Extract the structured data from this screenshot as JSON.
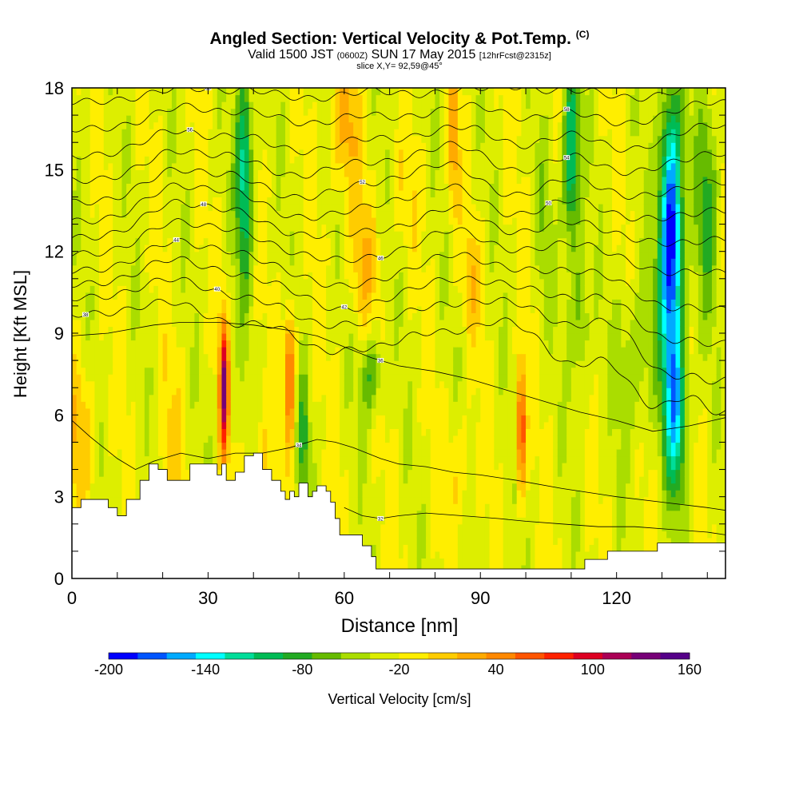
{
  "title": {
    "main": "Angled Section: Vertical Velocity & Pot.Temp.",
    "unit_tag": "(C)",
    "valid_prefix": "Valid 1500 JST",
    "valid_utc": "(0600Z)",
    "valid_date": "SUN 17 May 2015",
    "forecast": "[12hrFcst@2315z]",
    "slice": "slice X,Y= 92,59@45°"
  },
  "colors": {
    "scale": [
      "#0000ff",
      "#0055ff",
      "#00aaff",
      "#00ffff",
      "#00dd99",
      "#00bb55",
      "#22aa22",
      "#66bb00",
      "#aadd00",
      "#ddee00",
      "#ffee00",
      "#ffcc00",
      "#ffaa00",
      "#ff8800",
      "#ff5500",
      "#ff2200",
      "#dd0022",
      "#aa0055",
      "#770077",
      "#550088"
    ],
    "background": "#ffffff",
    "contour": "#000000",
    "terrain": "#ffffff"
  },
  "chart_data": {
    "type": "heatmap",
    "xlabel": "Distance [nm]",
    "ylabel": "Height [Kft MSL]",
    "xlim": [
      0,
      144
    ],
    "ylim": [
      0,
      18
    ],
    "xticks": [
      0,
      30,
      60,
      90,
      120
    ],
    "yticks": [
      0,
      3,
      6,
      9,
      12,
      15,
      18
    ],
    "colorbar": {
      "label": "Vertical Velocity [cm/s]",
      "min": -200,
      "max": 160,
      "step": 20,
      "tick_labels": [
        "-200",
        "-140",
        "-80",
        "-20",
        "40",
        "100",
        "160"
      ]
    },
    "background_value": -5,
    "velocity_features": [
      {
        "x": 2,
        "z": 5.5,
        "w": 45,
        "sx": 3,
        "sz": 2.5
      },
      {
        "x": 33.5,
        "z": 7.0,
        "w": 160,
        "sx": 1.0,
        "sz": 2.5
      },
      {
        "x": 48,
        "z": 7.5,
        "w": 95,
        "sx": 1.2,
        "sz": 2.5
      },
      {
        "x": 99,
        "z": 5.5,
        "w": 120,
        "sx": 1.0,
        "sz": 2.3
      },
      {
        "x": 42,
        "z": 4.0,
        "w": 35,
        "sx": 2,
        "sz": 2
      },
      {
        "x": 85,
        "z": 4.0,
        "w": 30,
        "sx": 3,
        "sz": 2
      },
      {
        "x": 22,
        "z": 5.0,
        "w": 25,
        "sx": 3,
        "sz": 3
      },
      {
        "x": 60,
        "z": 16.5,
        "w": 50,
        "sx": 3,
        "sz": 2.5
      },
      {
        "x": 64,
        "z": 11.5,
        "w": 40,
        "sx": 3,
        "sz": 2.5
      },
      {
        "x": 84,
        "z": 16.0,
        "w": 55,
        "sx": 1.3,
        "sz": 3
      },
      {
        "x": 88,
        "z": 11.0,
        "w": 35,
        "sx": 2,
        "sz": 2
      },
      {
        "x": 73,
        "z": 14.0,
        "w": 20,
        "sx": 3,
        "sz": 2
      },
      {
        "x": 38,
        "z": 15.0,
        "w": -110,
        "sx": 1.8,
        "sz": 4
      },
      {
        "x": 66,
        "z": 7.5,
        "w": -60,
        "sx": 2.5,
        "sz": 1.5
      },
      {
        "x": 51,
        "z": 5.0,
        "w": -55,
        "sx": 1.3,
        "sz": 2.5
      },
      {
        "x": 110,
        "z": 15.5,
        "w": -110,
        "sx": 1.8,
        "sz": 3.5
      },
      {
        "x": 112,
        "z": 9.5,
        "w": -50,
        "sx": 2,
        "sz": 2.5
      },
      {
        "x": 132,
        "z": 12.5,
        "w": -200,
        "sx": 2.5,
        "sz": 5
      },
      {
        "x": 133,
        "z": 6.0,
        "w": -110,
        "sx": 2.5,
        "sz": 3
      },
      {
        "x": 124,
        "z": 8.0,
        "w": -40,
        "sx": 4,
        "sz": 3
      },
      {
        "x": 140,
        "z": 14.0,
        "w": -60,
        "sx": 2.5,
        "sz": 4
      },
      {
        "x": 104,
        "z": 13.0,
        "w": -25,
        "sx": 2,
        "sz": 3
      }
    ],
    "terrain_profile": [
      [
        0,
        2.6
      ],
      [
        2,
        2.9
      ],
      [
        8,
        2.6
      ],
      [
        10,
        2.3
      ],
      [
        12,
        2.9
      ],
      [
        15,
        3.6
      ],
      [
        17,
        4.2
      ],
      [
        19,
        4.0
      ],
      [
        21,
        3.6
      ],
      [
        24,
        3.6
      ],
      [
        26,
        4.2
      ],
      [
        29,
        4.2
      ],
      [
        32,
        3.8
      ],
      [
        33,
        4.2
      ],
      [
        34,
        3.6
      ],
      [
        36,
        3.9
      ],
      [
        38,
        4.5
      ],
      [
        40,
        4.6
      ],
      [
        42,
        4.0
      ],
      [
        44,
        3.6
      ],
      [
        46,
        3.2
      ],
      [
        47,
        2.9
      ],
      [
        48,
        3.2
      ],
      [
        49,
        3.0
      ],
      [
        50,
        3.5
      ],
      [
        52,
        3.0
      ],
      [
        53,
        3.2
      ],
      [
        54,
        3.4
      ],
      [
        56,
        3.2
      ],
      [
        57,
        2.8
      ],
      [
        58,
        2.2
      ],
      [
        59,
        1.6
      ],
      [
        62,
        1.6
      ],
      [
        64,
        1.2
      ],
      [
        66,
        0.8
      ],
      [
        67,
        0.35
      ],
      [
        108,
        0.35
      ],
      [
        113,
        0.7
      ],
      [
        118,
        1.0
      ],
      [
        121,
        1.0
      ],
      [
        127,
        1.0
      ],
      [
        129,
        1.3
      ],
      [
        138,
        1.3
      ],
      [
        140,
        1.3
      ],
      [
        144,
        1.3
      ]
    ],
    "isotherms": [
      {
        "base": 9.7,
        "label": "38",
        "lx": 3,
        "osc": [
          [
            22,
            0.5
          ],
          [
            35,
            -0.4
          ],
          [
            55,
            -1.2
          ],
          [
            68,
            -1.0
          ],
          [
            84,
            -0.6
          ],
          [
            110,
            -1.8
          ],
          [
            128,
            -3.2
          ],
          [
            144,
            -3.5
          ]
        ]
      },
      {
        "base": 10.3,
        "label": "40",
        "lx": 32,
        "osc": [
          [
            22,
            0.7
          ],
          [
            36,
            0.0
          ],
          [
            55,
            -0.9
          ],
          [
            68,
            -0.7
          ],
          [
            84,
            -0.2
          ],
          [
            110,
            -1.0
          ],
          [
            130,
            -2.5
          ],
          [
            144,
            -2.8
          ]
        ]
      },
      {
        "base": 10.8,
        "label": "42",
        "lx": 60,
        "osc": [
          [
            22,
            0.9
          ],
          [
            36,
            0.3
          ],
          [
            58,
            -0.8
          ],
          [
            68,
            -0.4
          ],
          [
            84,
            0.2
          ],
          [
            110,
            -0.5
          ],
          [
            130,
            -1.8
          ],
          [
            144,
            -2.0
          ]
        ]
      },
      {
        "base": 11.3,
        "label": "44",
        "lx": 23,
        "osc": [
          [
            22,
            1.0
          ],
          [
            36,
            0.6
          ],
          [
            58,
            -0.5
          ],
          [
            68,
            -0.2
          ],
          [
            84,
            0.6
          ],
          [
            110,
            0.0
          ],
          [
            130,
            -1.2
          ],
          [
            144,
            -1.3
          ]
        ]
      },
      {
        "base": 11.9,
        "label": "46",
        "lx": 68,
        "osc": [
          [
            22,
            1.1
          ],
          [
            36,
            0.8
          ],
          [
            60,
            -0.2
          ],
          [
            68,
            0.0
          ],
          [
            84,
            0.9
          ],
          [
            110,
            0.4
          ],
          [
            130,
            -0.6
          ],
          [
            144,
            -0.6
          ]
        ]
      },
      {
        "base": 12.5,
        "label": "48",
        "lx": 29,
        "osc": [
          [
            22,
            1.2
          ],
          [
            36,
            0.9
          ],
          [
            60,
            0.1
          ],
          [
            70,
            0.2
          ],
          [
            84,
            1.1
          ],
          [
            110,
            0.6
          ],
          [
            132,
            -0.2
          ],
          [
            144,
            0.0
          ]
        ]
      },
      {
        "base": 13.1,
        "label": "50",
        "lx": 105,
        "osc": [
          [
            22,
            1.2
          ],
          [
            36,
            1.0
          ],
          [
            62,
            0.3
          ],
          [
            72,
            0.5
          ],
          [
            84,
            1.2
          ],
          [
            110,
            0.8
          ],
          [
            132,
            0.1
          ],
          [
            144,
            0.4
          ]
        ]
      },
      {
        "base": 13.8,
        "label": "52",
        "lx": 64,
        "osc": [
          [
            22,
            1.1
          ],
          [
            36,
            0.9
          ],
          [
            62,
            0.5
          ],
          [
            74,
            0.6
          ],
          [
            84,
            1.2
          ],
          [
            110,
            0.9
          ],
          [
            132,
            0.3
          ],
          [
            144,
            0.7
          ]
        ]
      },
      {
        "base": 14.6,
        "label": "54",
        "lx": 109,
        "osc": [
          [
            22,
            1.0
          ],
          [
            36,
            0.8
          ],
          [
            62,
            0.6
          ],
          [
            76,
            0.6
          ],
          [
            86,
            1.1
          ],
          [
            110,
            0.9
          ],
          [
            132,
            0.5
          ],
          [
            144,
            0.9
          ]
        ]
      },
      {
        "base": 15.5,
        "label": "56",
        "lx": 26,
        "osc": [
          [
            22,
            0.9
          ],
          [
            38,
            0.7
          ],
          [
            64,
            0.6
          ],
          [
            78,
            0.5
          ],
          [
            88,
            0.9
          ],
          [
            110,
            0.8
          ],
          [
            134,
            0.6
          ],
          [
            144,
            0.9
          ]
        ]
      },
      {
        "base": 16.5,
        "label": "58",
        "lx": 109,
        "osc": [
          [
            24,
            0.8
          ],
          [
            40,
            0.6
          ],
          [
            64,
            0.5
          ],
          [
            80,
            0.4
          ],
          [
            90,
            0.7
          ],
          [
            110,
            0.6
          ],
          [
            134,
            0.5
          ],
          [
            144,
            0.8
          ]
        ]
      },
      {
        "base": 17.5,
        "label": "60",
        "lx": 30,
        "osc": [
          [
            24,
            0.5
          ],
          [
            40,
            0.4
          ],
          [
            66,
            0.4
          ],
          [
            84,
            0.3
          ],
          [
            96,
            0.5
          ],
          [
            112,
            0.4
          ],
          [
            136,
            0.3
          ],
          [
            144,
            0.6
          ]
        ]
      }
    ],
    "lower_isotherms": [
      {
        "label": "36",
        "lx": 68,
        "points": [
          [
            0,
            8.9
          ],
          [
            8,
            9.0
          ],
          [
            18,
            9.3
          ],
          [
            24,
            9.4
          ],
          [
            32,
            9.4
          ],
          [
            40,
            9.3
          ],
          [
            48,
            9.1
          ],
          [
            54,
            8.9
          ],
          [
            60,
            8.5
          ],
          [
            66,
            8.1
          ],
          [
            72,
            7.8
          ],
          [
            80,
            7.6
          ],
          [
            88,
            7.3
          ],
          [
            96,
            6.9
          ],
          [
            104,
            6.5
          ],
          [
            112,
            6.1
          ],
          [
            120,
            5.8
          ],
          [
            128,
            5.4
          ],
          [
            136,
            5.6
          ],
          [
            144,
            5.9
          ]
        ]
      },
      {
        "label": "34",
        "lx": 50,
        "points": [
          [
            0,
            5.8
          ],
          [
            4,
            5.2
          ],
          [
            10,
            4.4
          ],
          [
            14,
            4.0
          ],
          [
            18,
            4.3
          ],
          [
            24,
            4.6
          ],
          [
            30,
            4.4
          ],
          [
            36,
            4.6
          ],
          [
            42,
            4.6
          ],
          [
            48,
            4.8
          ],
          [
            54,
            5.1
          ],
          [
            58,
            5.0
          ],
          [
            62,
            4.8
          ],
          [
            68,
            4.4
          ],
          [
            72,
            4.2
          ],
          [
            78,
            4.1
          ],
          [
            84,
            3.9
          ],
          [
            90,
            3.8
          ],
          [
            98,
            3.6
          ],
          [
            108,
            3.3
          ],
          [
            120,
            3.0
          ],
          [
            130,
            2.8
          ],
          [
            140,
            2.6
          ],
          [
            144,
            2.5
          ]
        ]
      },
      {
        "label": "32",
        "lx": 68,
        "points": [
          [
            60,
            2.6
          ],
          [
            64,
            2.3
          ],
          [
            68,
            2.2
          ],
          [
            72,
            2.3
          ],
          [
            78,
            2.4
          ],
          [
            86,
            2.3
          ],
          [
            94,
            2.2
          ],
          [
            100,
            2.1
          ],
          [
            108,
            2.0
          ],
          [
            116,
            1.9
          ],
          [
            124,
            1.9
          ],
          [
            132,
            1.8
          ],
          [
            140,
            1.7
          ],
          [
            144,
            1.6
          ]
        ]
      }
    ]
  }
}
